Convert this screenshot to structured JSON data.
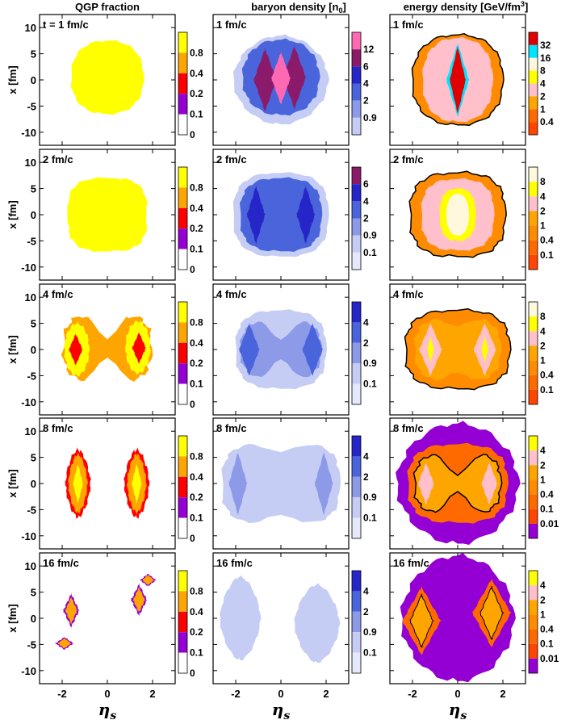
{
  "chart_data": {
    "type": "heatmap",
    "columns": [
      {
        "title": "QGP fraction"
      },
      {
        "title": "baryon density [n",
        "title_sub": "0",
        "title_tail": "]"
      },
      {
        "title": "energy density [GeV/fm",
        "title_sup": "3",
        "title_tail": "]"
      }
    ],
    "x_axis": {
      "label": "η",
      "label_sub": "s",
      "range": [
        -3,
        3
      ],
      "ticks": [
        -2,
        0,
        2
      ]
    },
    "y_axis": {
      "label": "x [fm]",
      "range": [
        -12.5,
        12.5
      ],
      "ticks": [
        10,
        5,
        0,
        -5,
        -10
      ]
    },
    "rows": [
      {
        "times": [
          "t = 1 fm/c",
          "1 fm/c",
          "1 fm/c"
        ]
      },
      {
        "times": [
          "2 fm/c",
          "2 fm/c",
          "2 fm/c"
        ]
      },
      {
        "times": [
          "4 fm/c",
          "4 fm/c",
          "4 fm/c"
        ]
      },
      {
        "times": [
          "8 fm/c",
          "8 fm/c",
          "8 fm/c"
        ]
      },
      {
        "times": [
          "16 fm/c",
          "16 fm/c",
          "16 fm/c"
        ]
      }
    ],
    "colorbars": [
      [
        {
          "levels": [
            "0.8",
            "0.4",
            "0.2",
            "0.1",
            "0"
          ],
          "colors": [
            "#ffff00",
            "#ffa500",
            "#ff0000",
            "#9400d3",
            "#ffffff"
          ]
        },
        {
          "levels": [
            "0.8",
            "0.4",
            "0.2",
            "0.1",
            "0"
          ],
          "colors": [
            "#ffff00",
            "#ffa500",
            "#ff0000",
            "#9400d3",
            "#ffffff"
          ]
        },
        {
          "levels": [
            "0.8",
            "0.4",
            "0.2",
            "0.1",
            "0"
          ],
          "colors": [
            "#ffff00",
            "#ffa500",
            "#ff0000",
            "#9400d3",
            "#ffffff"
          ]
        },
        {
          "levels": [
            "0.8",
            "0.4",
            "0.2",
            "0.1",
            "0"
          ],
          "colors": [
            "#ffff00",
            "#ffa500",
            "#ff0000",
            "#9400d3",
            "#ffffff"
          ]
        },
        {
          "levels": [
            "0.8",
            "0.4",
            "0.2",
            "0.1",
            "0"
          ],
          "colors": [
            "#ffff00",
            "#ffa500",
            "#ff0000",
            "#9400d3",
            "#ffffff"
          ]
        }
      ],
      [
        {
          "levels": [
            "12",
            "6",
            "4",
            "2",
            "0.9"
          ],
          "colors": [
            "#ff69b4",
            "#8b1a6b",
            "#2626c8",
            "#4a64dc",
            "#8c9ae8",
            "#c6cdf5"
          ]
        },
        {
          "levels": [
            "6",
            "4",
            "2",
            "0.9",
            "0.1"
          ],
          "colors": [
            "#8b1a6b",
            "#2626c8",
            "#4a64dc",
            "#8c9ae8",
            "#c6cdf5",
            "#e6e9fb"
          ]
        },
        {
          "levels": [
            "4",
            "2",
            "0.9",
            "0.1"
          ],
          "colors": [
            "#2626c8",
            "#4a64dc",
            "#8c9ae8",
            "#c6cdf5",
            "#e6e9fb"
          ]
        },
        {
          "levels": [
            "4",
            "2",
            "0.9",
            "0.1"
          ],
          "colors": [
            "#2626c8",
            "#4a64dc",
            "#8c9ae8",
            "#c6cdf5",
            "#e6e9fb"
          ]
        },
        {
          "levels": [
            "4",
            "2",
            "0.9",
            "0.1"
          ],
          "colors": [
            "#2626c8",
            "#4a64dc",
            "#8c9ae8",
            "#c6cdf5",
            "#e6e9fb"
          ]
        }
      ],
      [
        {
          "levels": [
            "32",
            "16",
            "8",
            "4",
            "2",
            "1",
            "0.4"
          ],
          "colors": [
            "#e00000",
            "#00e5ff",
            "#fff8dc",
            "#ffff00",
            "#ffc0cb",
            "#ffa500",
            "#ff6a00",
            "#ff4500"
          ]
        },
        {
          "levels": [
            "8",
            "4",
            "2",
            "1",
            "0.4",
            "0.1"
          ],
          "colors": [
            "#fff8dc",
            "#ffff00",
            "#ffc0cb",
            "#ffa500",
            "#ff8c00",
            "#ff6a00",
            "#ff4500"
          ]
        },
        {
          "levels": [
            "8",
            "4",
            "2",
            "1",
            "0.4",
            "0.1"
          ],
          "colors": [
            "#fff8dc",
            "#ffff00",
            "#ffc0cb",
            "#ffa500",
            "#ff8c00",
            "#ff6a00",
            "#ff4500"
          ]
        },
        {
          "levels": [
            "4",
            "2",
            "1",
            "0.4",
            "0.1",
            "0.01"
          ],
          "colors": [
            "#ffff00",
            "#ffc0cb",
            "#ffa500",
            "#ff8c00",
            "#ff6a00",
            "#ff4500",
            "#9400d3"
          ]
        },
        {
          "levels": [
            "4",
            "2",
            "1",
            "0.4",
            "0.1",
            "0.01"
          ],
          "colors": [
            "#ffff00",
            "#ffc0cb",
            "#ffa500",
            "#ff8c00",
            "#ff6a00",
            "#ff4500",
            "#9400d3"
          ]
        }
      ]
    ]
  }
}
